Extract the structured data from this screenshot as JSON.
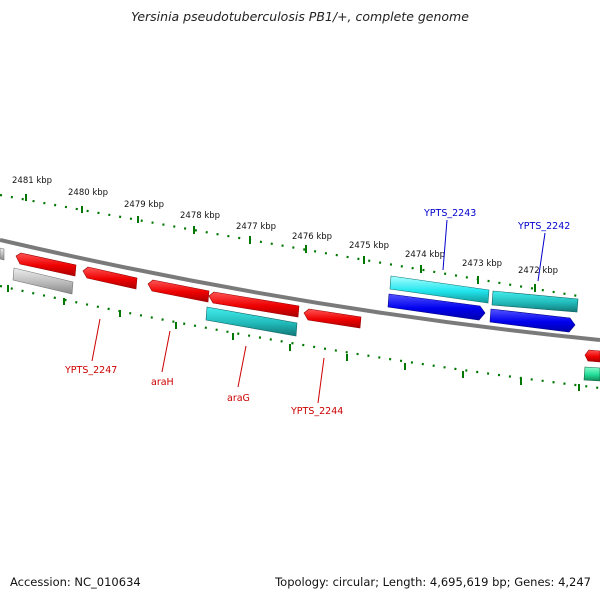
{
  "title": "Yersinia pseudotuberculosis PB1/+, complete genome",
  "footer": {
    "accession": "Accession: NC_010634",
    "topology": "Topology: circular; Length: 4,695,619 bp; Genes: 4,247"
  },
  "colors": {
    "forward_gene": "#ee0000",
    "reverse_gene_cyan": "#22bbbb",
    "reverse_gene_blue": "#0000ee",
    "pseudo_gene": "#bbbbbb",
    "backbone": "#7a7a7a",
    "tick": "#007700",
    "label_red": "#cc0000",
    "label_blue": "#0000cc"
  },
  "scale": {
    "unit": "kbp",
    "ticks": [
      "2481 kbp",
      "2480 kbp",
      "2479 kbp",
      "2478 kbp",
      "2477 kbp",
      "2476 kbp",
      "2475 kbp",
      "2474 kbp",
      "2473 kbp",
      "2472 kbp"
    ]
  },
  "gene_labels": [
    {
      "text": "YPTS_2243",
      "color": "label_blue"
    },
    {
      "text": "YPTS_2242",
      "color": "label_blue"
    },
    {
      "text": "YPTS_2247",
      "color": "label_red"
    },
    {
      "text": "araH",
      "color": "label_red"
    },
    {
      "text": "araG",
      "color": "label_red"
    },
    {
      "text": "YPTS_2244",
      "color": "label_red"
    }
  ]
}
